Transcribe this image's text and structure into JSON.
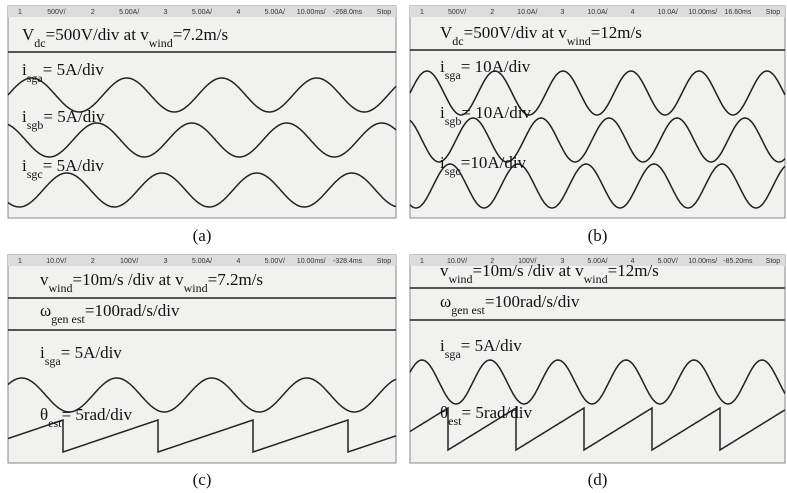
{
  "panels": [
    {
      "caption": "(a)",
      "header": [
        "1",
        "500V/",
        "2",
        "5.00A/",
        "3",
        "5.00A/",
        "4",
        "5.00A/",
        "10.00ms/",
        "-268.0ms",
        "Stop"
      ],
      "labels": [
        [
          {
            "text": "V"
          },
          {
            "text": "dc",
            "sub": true
          },
          {
            "text": "=500V/div at v"
          },
          {
            "text": "wind",
            "sub": true
          },
          {
            "text": "=7.2m/s"
          }
        ],
        [
          {
            "text": "i"
          },
          {
            "text": "sga",
            "sub": true
          },
          {
            "text": "= 5A/div"
          }
        ],
        [
          {
            "text": "i"
          },
          {
            "text": "sgb",
            "sub": true
          },
          {
            "text": "= 5A/div"
          }
        ],
        [
          {
            "text": "i"
          },
          {
            "text": "sgc",
            "sub": true
          },
          {
            "text": "= 5A/div"
          }
        ]
      ]
    },
    {
      "caption": "(b)",
      "header": [
        "1",
        "500V/",
        "2",
        "10.0A/",
        "3",
        "10.0A/",
        "4",
        "10.0A/",
        "10.00ms/",
        "16.60ms",
        "Stop"
      ],
      "labels": [
        [
          {
            "text": "V"
          },
          {
            "text": "dc",
            "sub": true
          },
          {
            "text": "=500V/div at v"
          },
          {
            "text": "wind",
            "sub": true
          },
          {
            "text": "=12m/s"
          }
        ],
        [
          {
            "text": "i"
          },
          {
            "text": "sga",
            "sub": true
          },
          {
            "text": "= 10A/div"
          }
        ],
        [
          {
            "text": "i"
          },
          {
            "text": "sgb",
            "sub": true
          },
          {
            "text": "= 10A/div"
          }
        ],
        [
          {
            "text": "i"
          },
          {
            "text": "sgc",
            "sub": true
          },
          {
            "text": "=10A/div"
          }
        ]
      ]
    },
    {
      "caption": "(c)",
      "header": [
        "1",
        "10.0V/",
        "2",
        "100V/",
        "3",
        "5.00A/",
        "4",
        "5.00V/",
        "10.00ms/",
        "-328.4ms",
        "Stop"
      ],
      "labels": [
        [
          {
            "text": "v"
          },
          {
            "text": "wind",
            "sub": true
          },
          {
            "text": "=10m/s /div at v"
          },
          {
            "text": "wind",
            "sub": true
          },
          {
            "text": "=7.2m/s"
          }
        ],
        [
          {
            "text": "ω"
          },
          {
            "text": "gen est",
            "sub": true
          },
          {
            "text": "=100rad/s/div"
          }
        ],
        [
          {
            "text": "i"
          },
          {
            "text": "sga",
            "sub": true
          },
          {
            "text": "= 5A/div"
          }
        ],
        [
          {
            "text": "θ"
          },
          {
            "text": "est",
            "sub": true
          },
          {
            "text": "= 5rad/div"
          }
        ]
      ]
    },
    {
      "caption": "(d)",
      "header": [
        "1",
        "10.0V/",
        "2",
        "100V/",
        "3",
        "5.00A/",
        "4",
        "5.00V/",
        "10.00ms/",
        "-85.20ms",
        "Stop"
      ],
      "labels": [
        [
          {
            "text": "v"
          },
          {
            "text": "wind",
            "sub": true
          },
          {
            "text": "=10m/s /div at v"
          },
          {
            "text": "wind",
            "sub": true
          },
          {
            "text": "=12m/s"
          }
        ],
        [
          {
            "text": "ω"
          },
          {
            "text": "gen est",
            "sub": true
          },
          {
            "text": "=100rad/s/div"
          }
        ],
        [
          {
            "text": "i"
          },
          {
            "text": "sga",
            "sub": true
          },
          {
            "text": "= 5A/div"
          }
        ],
        [
          {
            "text": "θ"
          },
          {
            "text": "est",
            "sub": true
          },
          {
            "text": "= 5rad/div"
          }
        ]
      ]
    }
  ]
}
